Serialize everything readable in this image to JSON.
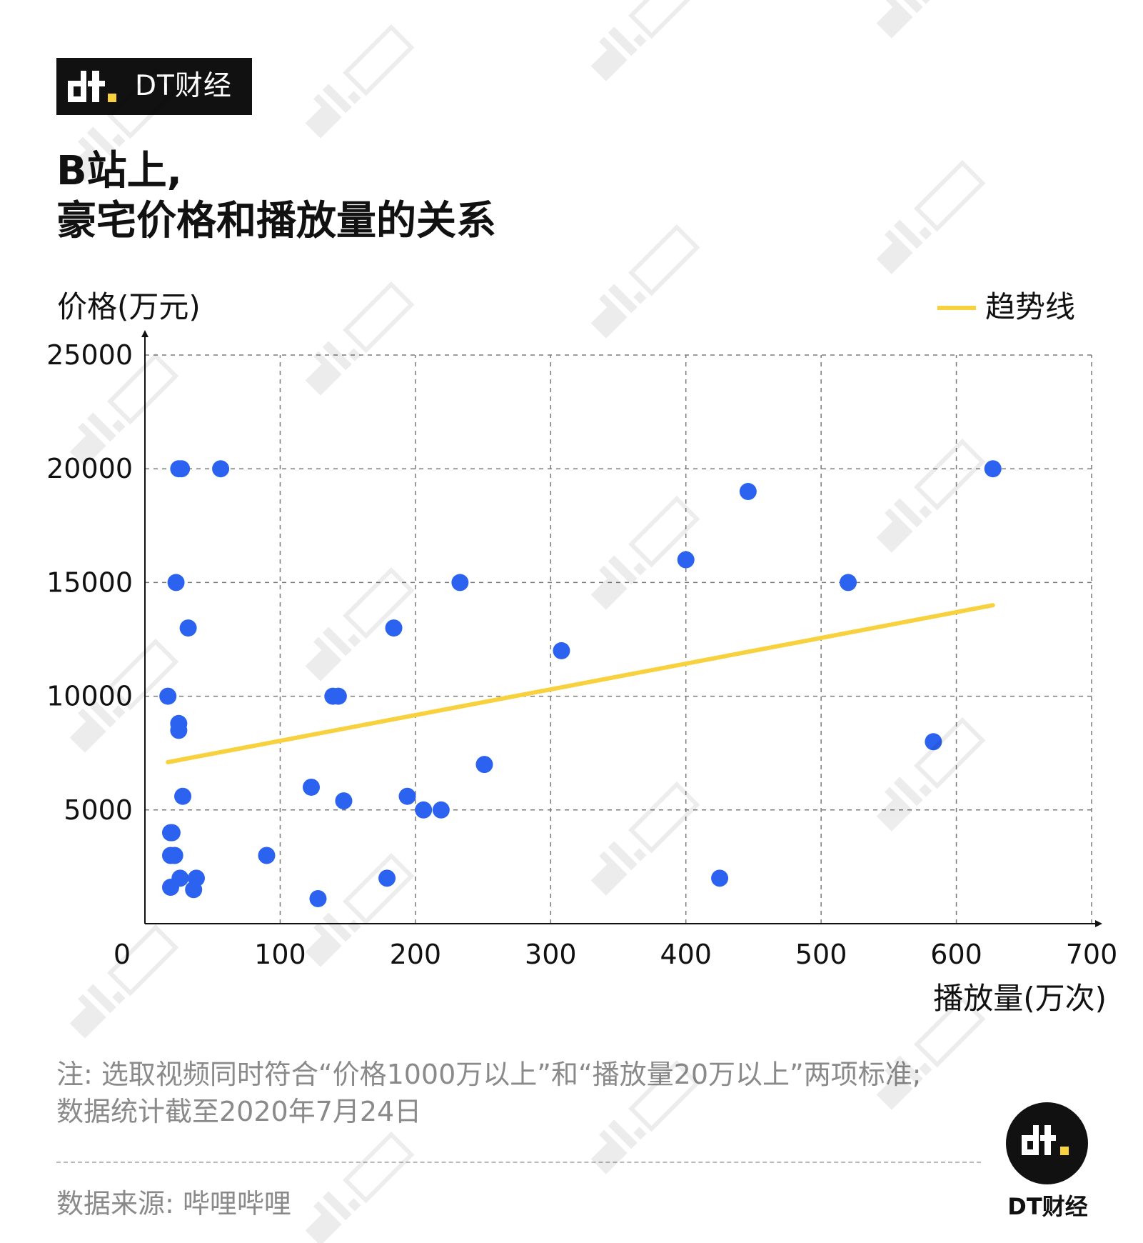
{
  "brand": {
    "name": "DT财经",
    "footer_name": "DT财经"
  },
  "title": {
    "line1": "B站上,",
    "line2": "豪宅价格和播放量的关系"
  },
  "legend": {
    "label": "趋势线"
  },
  "colors": {
    "points": "#2b62f0",
    "trend": "#f7d23e",
    "brand_dark": "#111111",
    "brand_accent": "#f7d23e"
  },
  "chart_data": {
    "type": "scatter",
    "xlabel": "播放量(万次)",
    "ylabel": "价格(万元)",
    "xlim": [
      0,
      700
    ],
    "ylim": [
      0,
      25000
    ],
    "x_ticks": [
      0,
      100,
      200,
      300,
      400,
      500,
      600,
      700
    ],
    "y_ticks": [
      5000,
      10000,
      15000,
      20000,
      25000
    ],
    "grid": true,
    "legend_position": "top-right",
    "points": [
      {
        "x": 25,
        "y": 20000
      },
      {
        "x": 27,
        "y": 20000
      },
      {
        "x": 56,
        "y": 20000
      },
      {
        "x": 23,
        "y": 15000
      },
      {
        "x": 32,
        "y": 13000
      },
      {
        "x": 17,
        "y": 10000
      },
      {
        "x": 25,
        "y": 8800
      },
      {
        "x": 25,
        "y": 8500
      },
      {
        "x": 28,
        "y": 5600
      },
      {
        "x": 19,
        "y": 4000
      },
      {
        "x": 20,
        "y": 4000
      },
      {
        "x": 19,
        "y": 3000
      },
      {
        "x": 22,
        "y": 3000
      },
      {
        "x": 26,
        "y": 2000
      },
      {
        "x": 38,
        "y": 2000
      },
      {
        "x": 19,
        "y": 1600
      },
      {
        "x": 36,
        "y": 1500
      },
      {
        "x": 90,
        "y": 3000
      },
      {
        "x": 123,
        "y": 6000
      },
      {
        "x": 128,
        "y": 1100
      },
      {
        "x": 139,
        "y": 10000
      },
      {
        "x": 143,
        "y": 10000
      },
      {
        "x": 147,
        "y": 5400
      },
      {
        "x": 179,
        "y": 2000
      },
      {
        "x": 184,
        "y": 13000
      },
      {
        "x": 194,
        "y": 5600
      },
      {
        "x": 206,
        "y": 5000
      },
      {
        "x": 219,
        "y": 5000
      },
      {
        "x": 233,
        "y": 15000
      },
      {
        "x": 251,
        "y": 7000
      },
      {
        "x": 308,
        "y": 12000
      },
      {
        "x": 400,
        "y": 16000
      },
      {
        "x": 425,
        "y": 2000
      },
      {
        "x": 446,
        "y": 19000
      },
      {
        "x": 520,
        "y": 15000
      },
      {
        "x": 583,
        "y": 8000
      },
      {
        "x": 627,
        "y": 20000
      }
    ],
    "trendline": {
      "x": [
        17,
        627
      ],
      "y": [
        7100,
        14000
      ]
    }
  },
  "note": {
    "line1": "注: 选取视频同时符合“价格1000万以上”和“播放量20万以上”两项标准;",
    "line2": "数据统计截至2020年7月24日"
  },
  "source": "数据来源: 哔哩哔哩"
}
